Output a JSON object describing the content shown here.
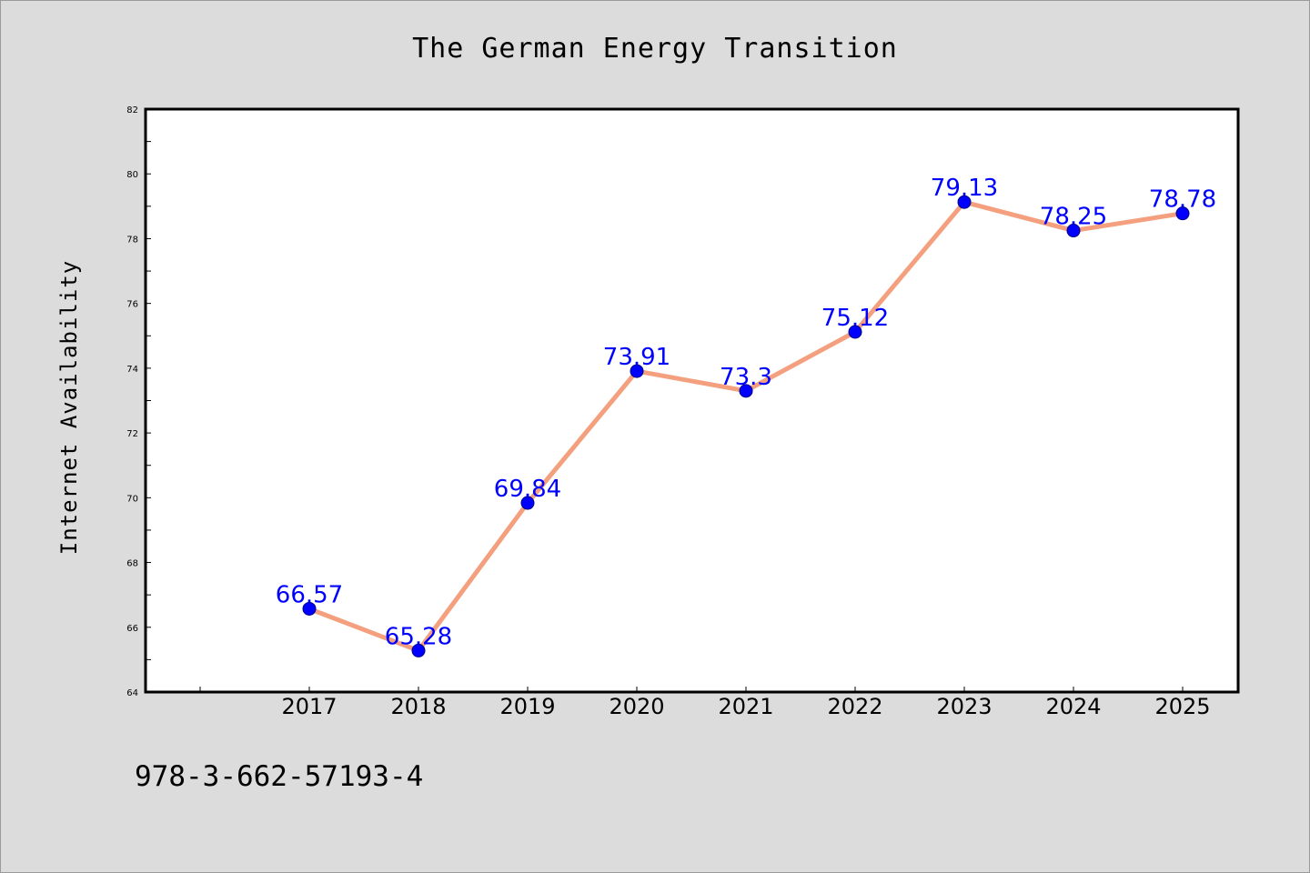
{
  "chart_data": {
    "type": "line",
    "title": "The German Energy Transition",
    "xlabel": "",
    "ylabel": "Internet Availability",
    "x": [
      "2017",
      "2018",
      "2019",
      "2020",
      "2021",
      "2022",
      "2023",
      "2024",
      "2025"
    ],
    "series": [
      {
        "values": [
          66.57,
          65.28,
          69.84,
          73.91,
          73.3,
          75.12,
          79.13,
          78.25,
          78.78
        ],
        "data_labels": [
          "66.57",
          "65.28",
          "69.84",
          "73.91",
          "73.3",
          "75.12",
          "79.13",
          "78.25",
          "78.78"
        ],
        "line_color": "#f4a07f",
        "marker_color": "#0000ff"
      }
    ],
    "ylim": [
      64,
      82
    ],
    "yticks": [
      64,
      66,
      68,
      70,
      72,
      74,
      76,
      78,
      80,
      82
    ],
    "grid": false,
    "legend": "none",
    "label_color": "#0000ff"
  },
  "footnote": "978-3-662-57193-4",
  "colors": {
    "background": "#dcdcdc",
    "plot_area": "#ffffff"
  }
}
